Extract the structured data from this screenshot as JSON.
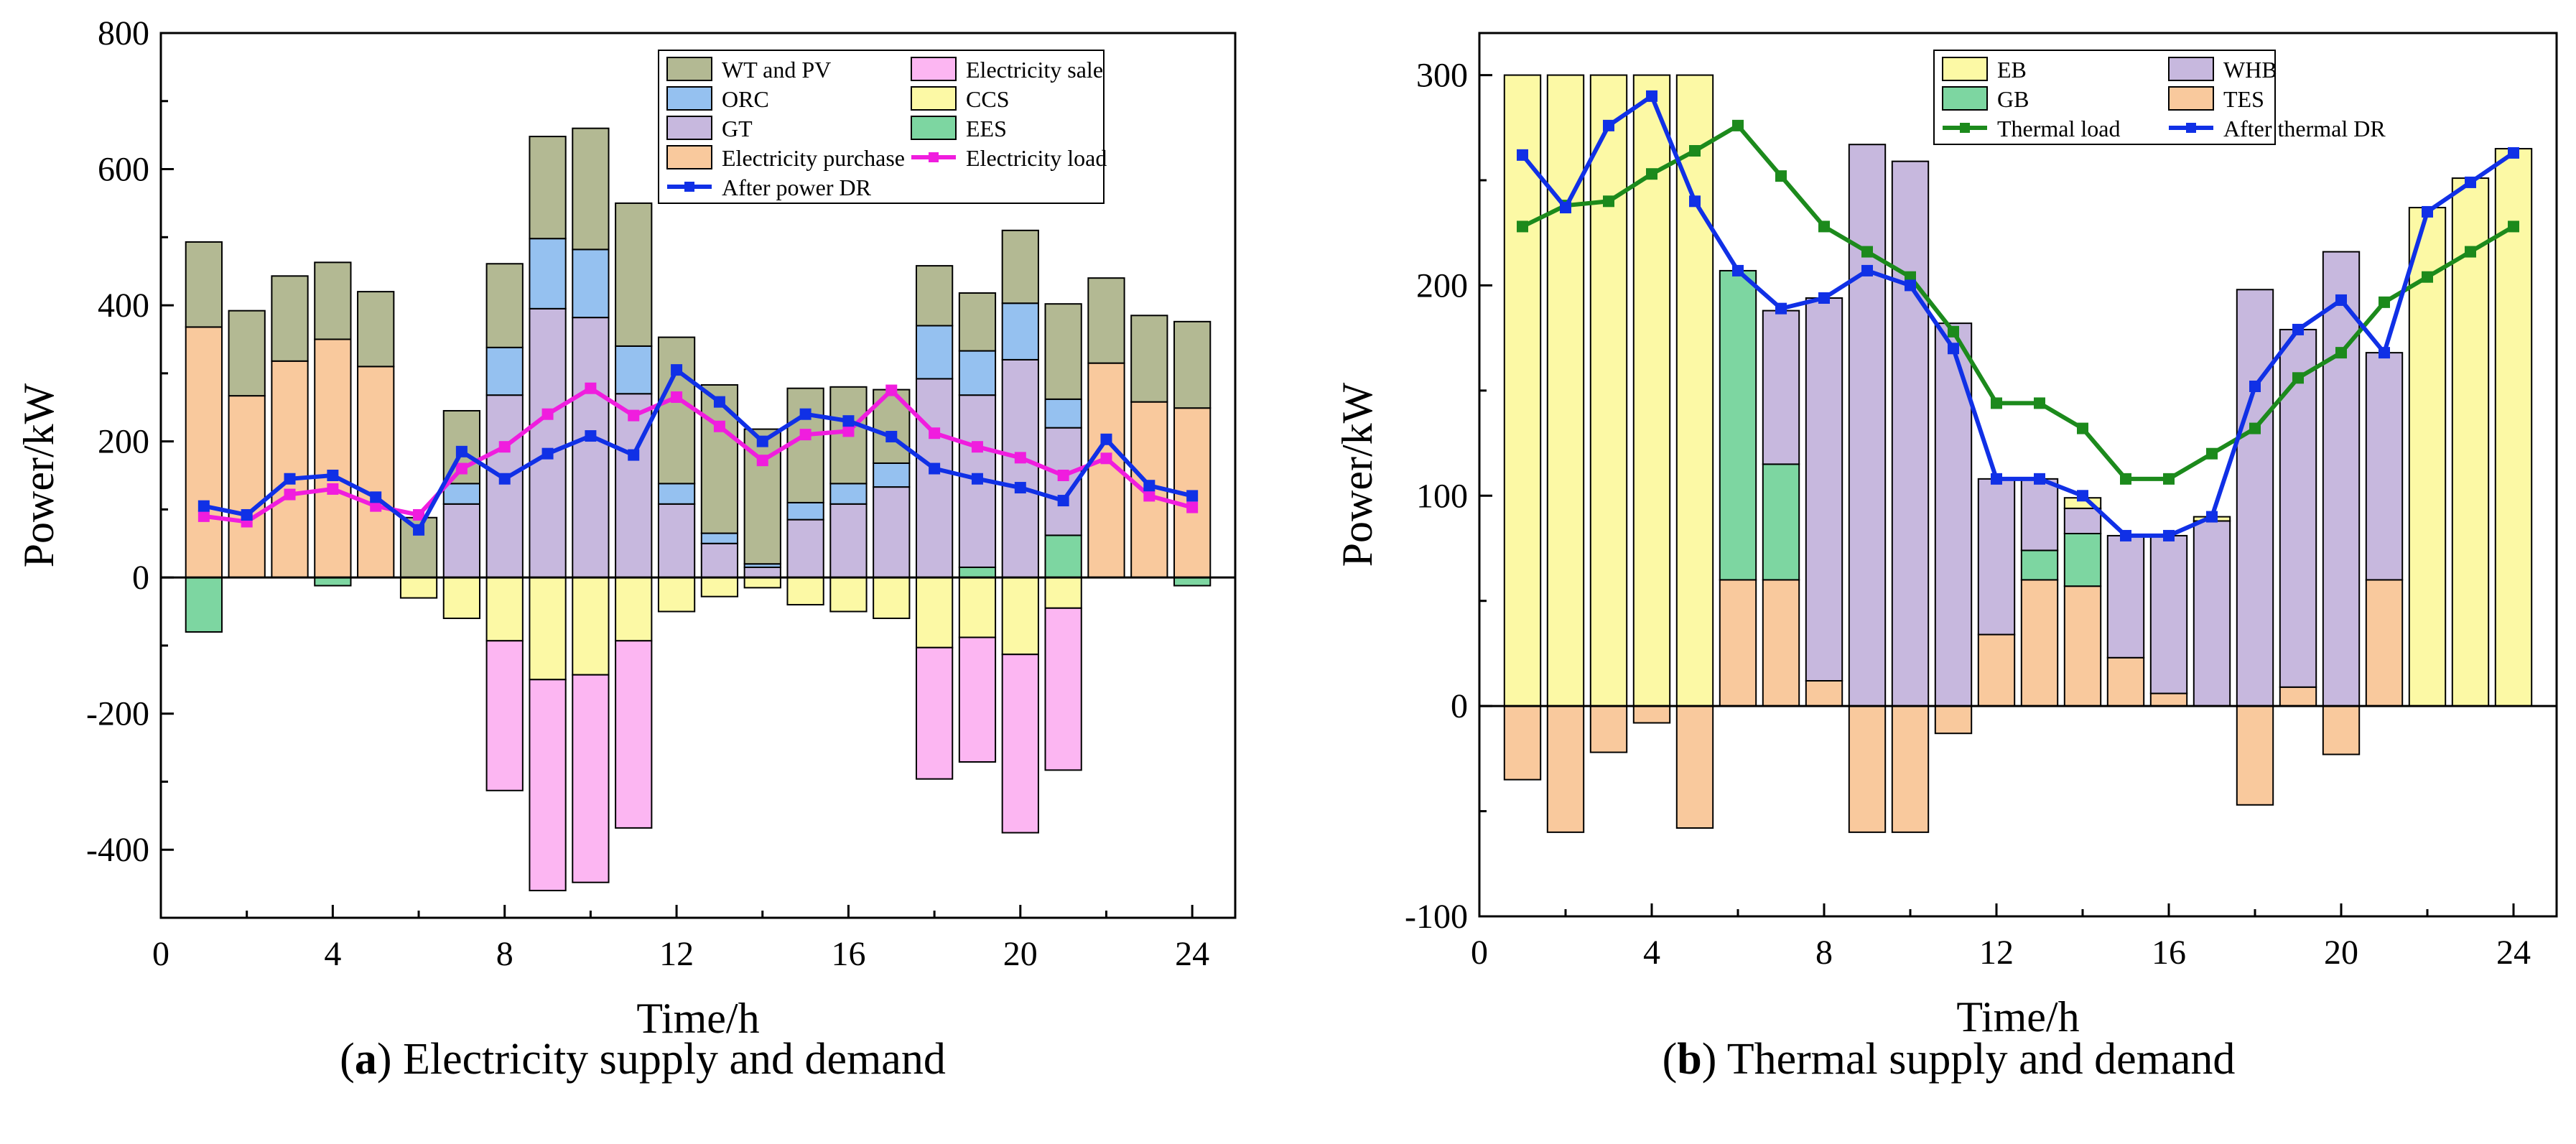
{
  "captions": {
    "a_letter": "a",
    "a_text": "Electricity supply and demand",
    "b_letter": "b",
    "b_text": "Thermal supply and demand"
  },
  "chart_data": [
    {
      "id": "a",
      "type": "bar",
      "stacked": true,
      "xlabel": "Time/h",
      "ylabel": "Power/kW",
      "xlim": [
        0,
        25
      ],
      "ylim": [
        -500,
        800
      ],
      "xticks": [
        0,
        4,
        8,
        12,
        16,
        20,
        24
      ],
      "yticks": [
        -400,
        -200,
        0,
        200,
        400,
        600,
        800
      ],
      "grid": false,
      "legend_position": "top-center",
      "x": [
        1,
        2,
        3,
        4,
        5,
        6,
        7,
        8,
        9,
        10,
        11,
        12,
        13,
        14,
        15,
        16,
        17,
        18,
        19,
        20,
        21,
        22,
        23,
        24
      ],
      "stack_order_positive": [
        "Electricity purchase",
        "EES",
        "GT",
        "ORC",
        "WT and PV"
      ],
      "stack_order_negative": [
        "EES",
        "CCS",
        "Electricity sale"
      ],
      "bars": [
        {
          "name": "Electricity purchase",
          "color": "#F9C99D",
          "values": [
            368,
            267,
            318,
            350,
            310,
            0,
            0,
            0,
            0,
            0,
            0,
            0,
            0,
            0,
            0,
            0,
            0,
            0,
            0,
            0,
            0,
            315,
            258,
            249
          ]
        },
        {
          "name": "EES",
          "color": "#7DD6A1",
          "values": [
            -80,
            0,
            0,
            -12,
            0,
            0,
            0,
            0,
            0,
            0,
            0,
            0,
            0,
            0,
            0,
            0,
            0,
            0,
            15,
            0,
            62,
            0,
            0,
            -12
          ]
        },
        {
          "name": "GT",
          "color": "#C7B8DE",
          "values": [
            0,
            0,
            0,
            0,
            0,
            0,
            108,
            268,
            395,
            382,
            270,
            108,
            50,
            15,
            85,
            108,
            133,
            292,
            253,
            320,
            158,
            0,
            0,
            0
          ]
        },
        {
          "name": "ORC",
          "color": "#95C1F0",
          "values": [
            0,
            0,
            0,
            0,
            0,
            0,
            30,
            70,
            103,
            100,
            70,
            30,
            15,
            5,
            25,
            30,
            35,
            78,
            65,
            83,
            42,
            0,
            0,
            0
          ]
        },
        {
          "name": "WT and PV",
          "color": "#B3B993",
          "values": [
            125,
            125,
            125,
            113,
            110,
            88,
            107,
            123,
            150,
            178,
            210,
            215,
            218,
            198,
            168,
            142,
            108,
            88,
            85,
            107,
            140,
            125,
            127,
            127
          ]
        },
        {
          "name": "CCS",
          "color": "#FCF9A5",
          "values": [
            0,
            0,
            0,
            0,
            0,
            -30,
            -60,
            -93,
            -150,
            -143,
            -93,
            -50,
            -28,
            -15,
            -40,
            -50,
            -60,
            -103,
            -88,
            -113,
            -45,
            0,
            0,
            0
          ]
        },
        {
          "name": "Electricity sale",
          "color": "#FCB6F2",
          "values": [
            0,
            0,
            0,
            0,
            0,
            0,
            0,
            -220,
            -310,
            -305,
            -275,
            0,
            0,
            0,
            0,
            0,
            0,
            -193,
            -183,
            -262,
            -238,
            0,
            0,
            0
          ]
        }
      ],
      "lines": [
        {
          "name": "Electricity load",
          "color": "#F01DDE",
          "values": [
            90,
            82,
            122,
            130,
            105,
            92,
            160,
            192,
            240,
            278,
            238,
            265,
            222,
            172,
            210,
            215,
            275,
            212,
            192,
            176,
            150,
            175,
            120,
            103
          ]
        },
        {
          "name": "After power DR",
          "color": "#1030E6",
          "values": [
            105,
            92,
            145,
            150,
            118,
            70,
            185,
            145,
            182,
            208,
            180,
            305,
            258,
            200,
            240,
            230,
            207,
            160,
            145,
            132,
            113,
            203,
            135,
            120
          ]
        }
      ],
      "legend": [
        "WT and PV",
        "Electricity sale",
        "ORC",
        "CCS",
        "GT",
        "EES",
        "Electricity purchase",
        "Electricity load",
        "After power DR"
      ]
    },
    {
      "id": "b",
      "type": "bar",
      "stacked": true,
      "xlabel": "Time/h",
      "ylabel": "Power/kW",
      "xlim": [
        0,
        25
      ],
      "ylim": [
        -100,
        320
      ],
      "xticks": [
        0,
        4,
        8,
        12,
        16,
        20,
        24
      ],
      "yticks": [
        -100,
        0,
        100,
        200,
        300
      ],
      "grid": false,
      "legend_position": "top-center",
      "x": [
        1,
        2,
        3,
        4,
        5,
        6,
        7,
        8,
        9,
        10,
        11,
        12,
        13,
        14,
        15,
        16,
        17,
        18,
        19,
        20,
        21,
        22,
        23,
        24
      ],
      "stack_order_positive": [
        "TES",
        "GB",
        "WHB",
        "EB"
      ],
      "stack_order_negative": [
        "TES"
      ],
      "bars": [
        {
          "name": "TES",
          "color": "#F9C99D",
          "values": [
            -35,
            -60,
            -22,
            -8,
            -58,
            60,
            60,
            12,
            -60,
            -60,
            -13,
            34,
            60,
            57,
            23,
            6,
            0,
            -47,
            9,
            -23,
            60,
            0,
            0,
            0
          ]
        },
        {
          "name": "GB",
          "color": "#7DD6A1",
          "values": [
            0,
            0,
            0,
            0,
            0,
            147,
            55,
            0,
            0,
            0,
            0,
            0,
            14,
            25,
            0,
            0,
            0,
            0,
            0,
            0,
            0,
            0,
            0,
            0
          ]
        },
        {
          "name": "WHB",
          "color": "#C7B8DE",
          "values": [
            0,
            0,
            0,
            0,
            0,
            0,
            73,
            182,
            267,
            259,
            182,
            74,
            34,
            12,
            58,
            75,
            88,
            198,
            170,
            216,
            108,
            0,
            0,
            0
          ]
        },
        {
          "name": "EB",
          "color": "#FCF9A5",
          "values": [
            300,
            300,
            300,
            300,
            300,
            0,
            0,
            0,
            0,
            0,
            0,
            0,
            0,
            5,
            0,
            0,
            2,
            0,
            0,
            0,
            0,
            237,
            251,
            265
          ]
        }
      ],
      "lines": [
        {
          "name": "Thermal load",
          "color": "#1C8A1C",
          "values": [
            228,
            238,
            240,
            253,
            264,
            276,
            252,
            228,
            216,
            204,
            178,
            144,
            144,
            132,
            108,
            108,
            120,
            132,
            156,
            168,
            192,
            204,
            216,
            228
          ]
        },
        {
          "name": "After thermal DR",
          "color": "#1030E6",
          "values": [
            262,
            237,
            276,
            290,
            240,
            207,
            189,
            194,
            207,
            200,
            170,
            108,
            108,
            100,
            81,
            81,
            90,
            152,
            179,
            193,
            168,
            235,
            249,
            263
          ]
        }
      ],
      "legend": [
        "EB",
        "WHB",
        "GB",
        "TES",
        "Thermal load",
        "After thermal DR"
      ]
    }
  ]
}
